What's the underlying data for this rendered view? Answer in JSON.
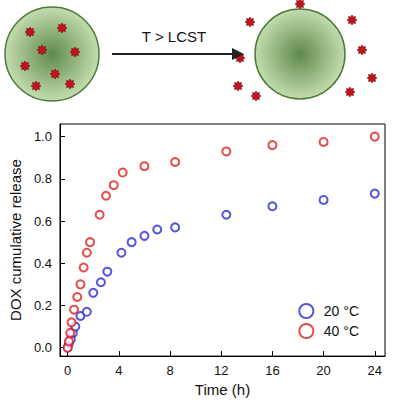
{
  "diagram": {
    "arrow_label": "T > LCST"
  },
  "chart_data": {
    "type": "scatter",
    "x_label": "Time (h)",
    "y_label": "DOX cumulative release",
    "xlim": [
      -0.6,
      24.8
    ],
    "xticks": [
      0,
      4,
      8,
      12,
      16,
      20,
      24
    ],
    "ylim": [
      -0.04,
      1.06
    ],
    "yticks": [
      {
        "value": 0,
        "label": "0.0"
      },
      0.2,
      0.4,
      0.6,
      0.8,
      {
        "value": 1,
        "label": "1.0"
      }
    ],
    "grid": false,
    "legend": "lower right",
    "series": [
      {
        "name": "20 °C",
        "color": "#2b2bd6",
        "marker": "open_circle",
        "x": [
          0,
          0.1,
          0.25,
          0.4,
          0.6,
          1,
          1.5,
          2,
          2.6,
          3.1,
          4.2,
          5,
          6,
          7,
          8.4,
          12.4,
          16,
          20,
          24
        ],
        "values": [
          0,
          0.02,
          0.04,
          0.07,
          0.1,
          0.15,
          0.17,
          0.26,
          0.31,
          0.36,
          0.45,
          0.5,
          0.53,
          0.56,
          0.57,
          0.63,
          0.67,
          0.7,
          0.73
        ]
      },
      {
        "name": "40 °C",
        "color": "#e02020",
        "marker": "open_circle",
        "x": [
          0,
          0.1,
          0.2,
          0.3,
          0.5,
          0.75,
          1,
          1.25,
          1.5,
          1.75,
          2.5,
          3,
          3.6,
          4.3,
          6,
          8.4,
          12.4,
          16,
          20,
          24
        ],
        "values": [
          0,
          0.03,
          0.07,
          0.12,
          0.18,
          0.24,
          0.3,
          0.38,
          0.45,
          0.5,
          0.63,
          0.72,
          0.77,
          0.83,
          0.86,
          0.88,
          0.93,
          0.96,
          0.975,
          1.0
        ]
      }
    ]
  }
}
